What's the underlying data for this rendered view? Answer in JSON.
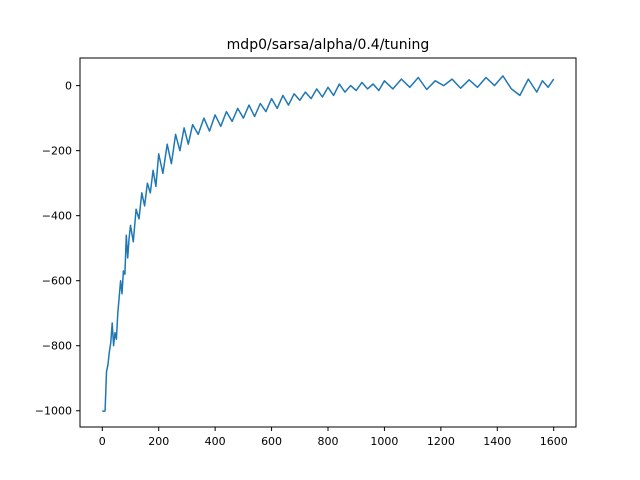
{
  "chart_data": {
    "type": "line",
    "title": "mdp0/sarsa/alpha/0.4/tuning",
    "xlabel": "",
    "ylabel": "",
    "xlim": [
      -79,
      1679
    ],
    "ylim": [
      -1050,
      85
    ],
    "xticks": [
      0,
      200,
      400,
      600,
      800,
      1000,
      1200,
      1400,
      1600
    ],
    "xtick_labels": [
      "0",
      "200",
      "400",
      "600",
      "800",
      "1000",
      "1200",
      "1400",
      "1600"
    ],
    "yticks": [
      -1000,
      -800,
      -600,
      -400,
      -200,
      0
    ],
    "ytick_labels": [
      "−1000",
      "−800",
      "−600",
      "−400",
      "−200",
      "0"
    ],
    "grid": false,
    "line_color": "#1f77b4",
    "series": [
      {
        "x": [
          0,
          6,
          10,
          15,
          20,
          25,
          30,
          35,
          40,
          45,
          50,
          55,
          60,
          65,
          70,
          75,
          80,
          85,
          90,
          95,
          100,
          110,
          120,
          130,
          140,
          150,
          160,
          170,
          180,
          190,
          200,
          215,
          230,
          245,
          260,
          275,
          290,
          305,
          320,
          340,
          360,
          380,
          400,
          420,
          440,
          460,
          480,
          500,
          520,
          540,
          560,
          580,
          600,
          620,
          640,
          660,
          680,
          700,
          720,
          740,
          760,
          780,
          800,
          820,
          840,
          860,
          880,
          900,
          920,
          940,
          960,
          980,
          1000,
          1030,
          1060,
          1090,
          1120,
          1150,
          1180,
          1210,
          1240,
          1270,
          1300,
          1330,
          1360,
          1390,
          1420,
          1450,
          1480,
          1510,
          1540,
          1560,
          1580,
          1600
        ],
        "values": [
          -1000,
          -1002,
          -1000,
          -880,
          -860,
          -820,
          -790,
          -730,
          -800,
          -760,
          -780,
          -700,
          -650,
          -600,
          -640,
          -570,
          -580,
          -460,
          -530,
          -470,
          -430,
          -480,
          -380,
          -410,
          -330,
          -370,
          -300,
          -330,
          -260,
          -310,
          -210,
          -270,
          -180,
          -240,
          -150,
          -200,
          -130,
          -180,
          -120,
          -150,
          -100,
          -140,
          -90,
          -125,
          -80,
          -110,
          -70,
          -100,
          -60,
          -95,
          -55,
          -80,
          -40,
          -70,
          -30,
          -60,
          -25,
          -45,
          -20,
          -40,
          -10,
          -35,
          -5,
          -30,
          5,
          -20,
          0,
          -15,
          10,
          -10,
          5,
          -15,
          15,
          -10,
          20,
          -5,
          25,
          -12,
          15,
          0,
          20,
          -8,
          18,
          -5,
          25,
          0,
          30,
          -10,
          -30,
          20,
          -20,
          15,
          -5,
          20
        ]
      }
    ]
  }
}
